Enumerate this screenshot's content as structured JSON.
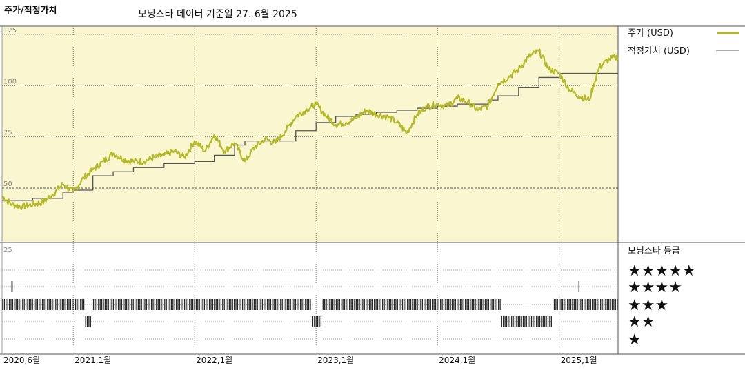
{
  "title": "주가/적정가치",
  "subtitle": "모닝스타 데이터 기준일 27. 6월 2025",
  "colors": {
    "price": "#b5b82a",
    "fair": "#555555",
    "panel_bg": "#faf6cf",
    "star_bar": "#222222"
  },
  "legend": {
    "price": "주가 (USD)",
    "fair": "적정가치 (USD)",
    "rating_title": "모닝스타 등급",
    "stars": [
      "★★★★★",
      "★★★★",
      "★★★",
      "★★",
      "★"
    ]
  },
  "chart_data": {
    "type": "line",
    "ylim": [
      25,
      125
    ],
    "yticks": [
      125,
      100,
      75,
      50,
      25
    ],
    "xrange": [
      "2020-06-01",
      "2025-06-27"
    ],
    "xticks": [
      {
        "date": "2020-06-01",
        "label": "2020,6월"
      },
      {
        "date": "2021-01-01",
        "label": "2021,1월"
      },
      {
        "date": "2022-01-01",
        "label": "2022,1월"
      },
      {
        "date": "2023-01-01",
        "label": "2023,1월"
      },
      {
        "date": "2024-01-01",
        "label": "2024,1월"
      },
      {
        "date": "2025-01-01",
        "label": "2025,1월"
      }
    ],
    "series": [
      {
        "name": "주가 (USD)",
        "points": [
          [
            "2020-06-01",
            46
          ],
          [
            "2020-07-01",
            42
          ],
          [
            "2020-08-01",
            41
          ],
          [
            "2020-09-01",
            42
          ],
          [
            "2020-10-01",
            43
          ],
          [
            "2020-11-01",
            47
          ],
          [
            "2020-12-01",
            52
          ],
          [
            "2021-01-01",
            48
          ],
          [
            "2021-02-01",
            55
          ],
          [
            "2021-03-01",
            59
          ],
          [
            "2021-04-01",
            63
          ],
          [
            "2021-05-01",
            67
          ],
          [
            "2021-06-01",
            64
          ],
          [
            "2021-07-01",
            63
          ],
          [
            "2021-08-01",
            63
          ],
          [
            "2021-09-01",
            65
          ],
          [
            "2021-10-01",
            66
          ],
          [
            "2021-11-01",
            68
          ],
          [
            "2021-12-01",
            65
          ],
          [
            "2022-01-01",
            73
          ],
          [
            "2022-02-01",
            68
          ],
          [
            "2022-03-01",
            76
          ],
          [
            "2022-04-01",
            68
          ],
          [
            "2022-05-01",
            72
          ],
          [
            "2022-06-01",
            63
          ],
          [
            "2022-07-01",
            70
          ],
          [
            "2022-08-01",
            74
          ],
          [
            "2022-09-01",
            72
          ],
          [
            "2022-10-01",
            78
          ],
          [
            "2022-11-01",
            85
          ],
          [
            "2022-12-01",
            88
          ],
          [
            "2023-01-01",
            91
          ],
          [
            "2023-02-01",
            85
          ],
          [
            "2023-03-01",
            81
          ],
          [
            "2023-04-01",
            82
          ],
          [
            "2023-05-01",
            84
          ],
          [
            "2023-06-01",
            88
          ],
          [
            "2023-07-01",
            86
          ],
          [
            "2023-08-01",
            85
          ],
          [
            "2023-09-01",
            82
          ],
          [
            "2023-10-01",
            77
          ],
          [
            "2023-11-01",
            86
          ],
          [
            "2023-12-01",
            90
          ],
          [
            "2024-01-01",
            91
          ],
          [
            "2024-02-01",
            90
          ],
          [
            "2024-03-01",
            94
          ],
          [
            "2024-04-01",
            92
          ],
          [
            "2024-05-01",
            88
          ],
          [
            "2024-06-01",
            90
          ],
          [
            "2024-07-01",
            101
          ],
          [
            "2024-08-01",
            104
          ],
          [
            "2024-09-01",
            108
          ],
          [
            "2024-10-01",
            114
          ],
          [
            "2024-11-01",
            117
          ],
          [
            "2024-12-01",
            108
          ],
          [
            "2025-01-01",
            106
          ],
          [
            "2025-02-01",
            98
          ],
          [
            "2025-03-01",
            95
          ],
          [
            "2025-04-01",
            93
          ],
          [
            "2025-05-01",
            109
          ],
          [
            "2025-06-01",
            113
          ],
          [
            "2025-06-27",
            114
          ]
        ]
      },
      {
        "name": "적정가치 (USD)",
        "points": [
          [
            "2020-06-01",
            44
          ],
          [
            "2020-09-01",
            45
          ],
          [
            "2020-12-01",
            48
          ],
          [
            "2021-01-01",
            49
          ],
          [
            "2021-03-01",
            56
          ],
          [
            "2021-05-01",
            58
          ],
          [
            "2021-07-01",
            60
          ],
          [
            "2021-10-01",
            62
          ],
          [
            "2022-01-01",
            63
          ],
          [
            "2022-03-01",
            66
          ],
          [
            "2022-05-01",
            71
          ],
          [
            "2022-06-01",
            73
          ],
          [
            "2022-09-01",
            73
          ],
          [
            "2022-11-01",
            78
          ],
          [
            "2023-01-01",
            82
          ],
          [
            "2023-03-01",
            85
          ],
          [
            "2023-05-01",
            86
          ],
          [
            "2023-07-01",
            87
          ],
          [
            "2023-09-01",
            88
          ],
          [
            "2023-11-01",
            89
          ],
          [
            "2024-01-01",
            90
          ],
          [
            "2024-03-01",
            91
          ],
          [
            "2024-06-01",
            93
          ],
          [
            "2024-07-01",
            95
          ],
          [
            "2024-09-01",
            99
          ],
          [
            "2024-11-01",
            104
          ],
          [
            "2025-01-01",
            106
          ],
          [
            "2025-06-27",
            106
          ]
        ]
      }
    ],
    "ratings": [
      {
        "from": "2020-06-01",
        "to": "2021-02-05",
        "stars": 3
      },
      {
        "from": "2021-02-05",
        "to": "2021-03-01",
        "stars": 2
      },
      {
        "from": "2021-03-01",
        "to": "2022-12-20",
        "stars": 3
      },
      {
        "from": "2022-12-20",
        "to": "2023-01-20",
        "stars": 2
      },
      {
        "from": "2023-01-20",
        "to": "2024-07-10",
        "stars": 3
      },
      {
        "from": "2024-07-10",
        "to": "2024-12-15",
        "stars": 2
      },
      {
        "from": "2024-12-15",
        "to": "2025-06-27",
        "stars": 3
      }
    ],
    "rating_spikes": [
      {
        "date": "2020-07-01",
        "stars": 4
      },
      {
        "date": "2025-03-01",
        "stars": 4
      }
    ]
  }
}
